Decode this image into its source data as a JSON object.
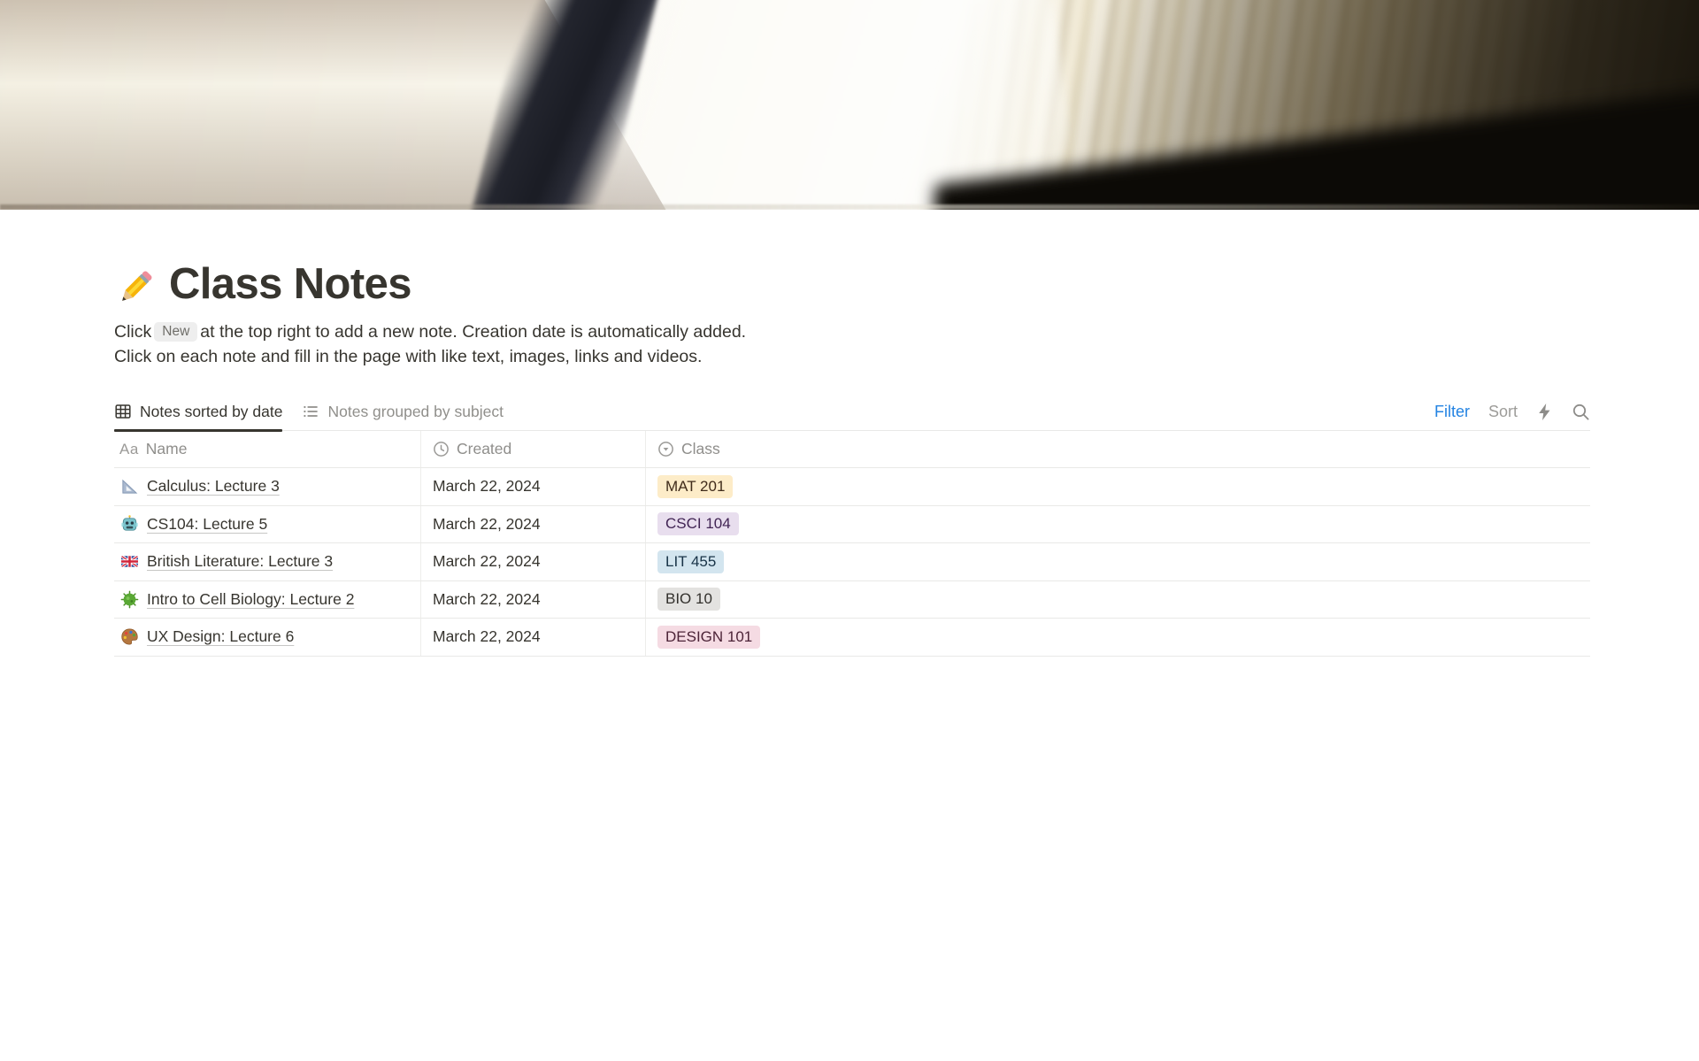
{
  "page": {
    "title": "Class Notes",
    "title_icon": "pencil-emoji",
    "description": {
      "line1_before_badge": "Click",
      "badge_label": "New",
      "line1_after_badge": "at the top right to add a new note. Creation date is automatically added.",
      "line2": "Click on each note and fill in the page with like text, images, links and videos."
    }
  },
  "view_bar": {
    "tabs": [
      {
        "label": "Notes sorted by date",
        "icon": "table-view-icon",
        "active": true
      },
      {
        "label": "Notes grouped by subject",
        "icon": "list-view-icon",
        "active": false
      }
    ],
    "actions": {
      "filter_label": "Filter",
      "sort_label": "Sort",
      "icons": [
        "bolt-icon",
        "search-icon"
      ]
    }
  },
  "table": {
    "columns": [
      {
        "label": "Name",
        "icon": "text-type-icon"
      },
      {
        "label": "Created",
        "icon": "clock-icon"
      },
      {
        "label": "Class",
        "icon": "select-property-icon"
      }
    ],
    "rows": [
      {
        "icon": "triangle-ruler-emoji",
        "name": "Calculus: Lecture 3",
        "created": "March 22, 2024",
        "tag": {
          "label": "MAT 201",
          "bg": "#fdecc8",
          "color": "#402c1b"
        }
      },
      {
        "icon": "robot-emoji",
        "name": "CS104: Lecture 5",
        "created": "March 22, 2024",
        "tag": {
          "label": "CSCI 104",
          "bg": "#e8deee",
          "color": "#412454"
        }
      },
      {
        "icon": "uk-flag-emoji",
        "name": "British Literature: Lecture 3",
        "created": "March 22, 2024",
        "tag": {
          "label": "LIT 455",
          "bg": "#d3e5ef",
          "color": "#183347"
        }
      },
      {
        "icon": "microbe-emoji",
        "name": "Intro to Cell Biology: Lecture 2",
        "created": "March 22, 2024",
        "tag": {
          "label": "BIO 10",
          "bg": "#e3e2e0",
          "color": "#32302c"
        }
      },
      {
        "icon": "palette-emoji",
        "name": "UX Design: Lecture 6",
        "created": "March 22, 2024",
        "tag": {
          "label": "DESIGN 101",
          "bg": "#f5dbe3",
          "color": "#4c2337"
        }
      }
    ]
  },
  "colors": {
    "accent_blue": "#2383e2",
    "text_dark": "#37352f",
    "text_gray": "#8f8e8b",
    "divider": "#e9e9e7"
  }
}
